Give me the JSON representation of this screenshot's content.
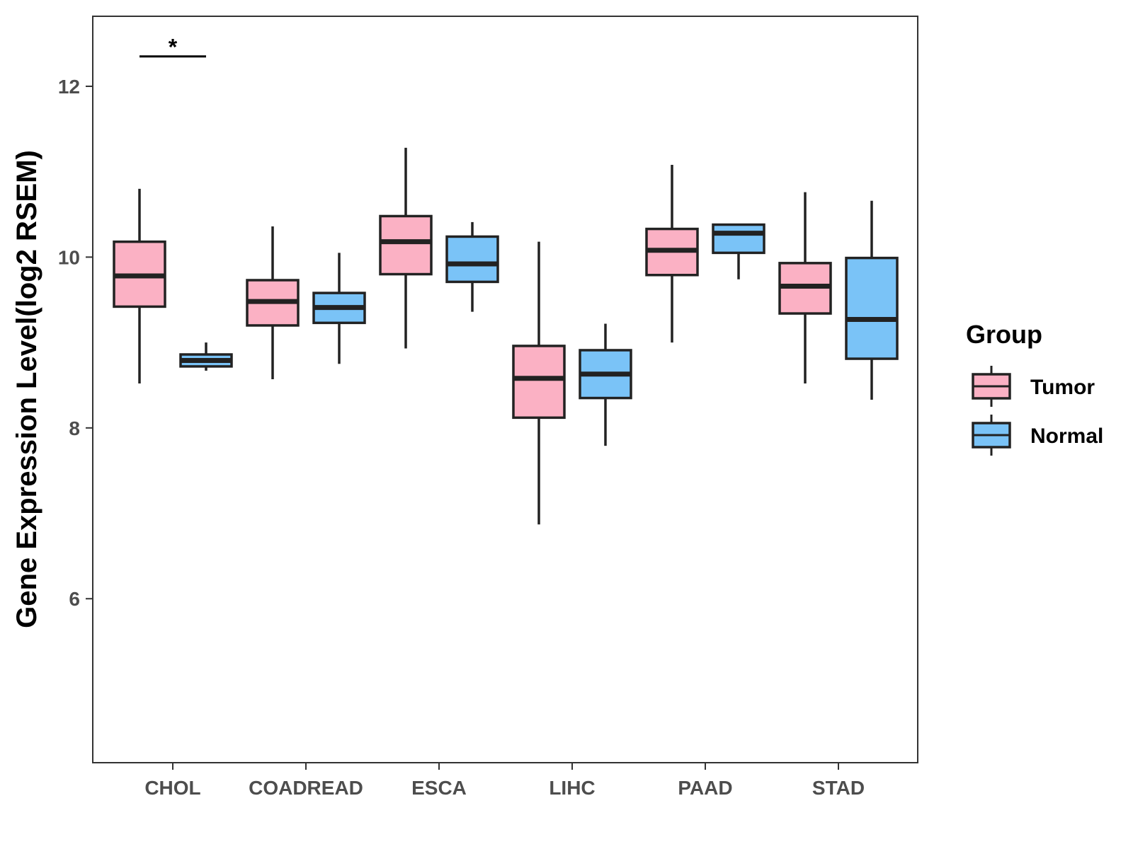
{
  "chart_data": {
    "type": "boxplot",
    "ylabel": "Gene Expression Level(log2 RSEM)",
    "xlabel": "",
    "ylim": [
      4.08,
      12.82
    ],
    "yticks": [
      6,
      8,
      10,
      12
    ],
    "grid": false,
    "categories": [
      "CHOL",
      "COADREAD",
      "ESCA",
      "LIHC",
      "PAAD",
      "STAD"
    ],
    "legend": {
      "title": "Group",
      "position": "right",
      "entries": [
        {
          "name": "Tumor",
          "color": "#FBB1C4"
        },
        {
          "name": "Normal",
          "color": "#7AC3F7"
        }
      ]
    },
    "series": [
      {
        "name": "Tumor",
        "color": "#FBB1C4",
        "boxes": [
          {
            "category": "CHOL",
            "min": 8.52,
            "q1": 9.42,
            "median": 9.78,
            "q3": 10.18,
            "max": 10.8
          },
          {
            "category": "COADREAD",
            "min": 8.57,
            "q1": 9.2,
            "median": 9.48,
            "q3": 9.73,
            "max": 10.36
          },
          {
            "category": "ESCA",
            "min": 8.93,
            "q1": 9.8,
            "median": 10.18,
            "q3": 10.48,
            "max": 11.28
          },
          {
            "category": "LIHC",
            "min": 6.87,
            "q1": 8.12,
            "median": 8.58,
            "q3": 8.96,
            "max": 10.18
          },
          {
            "category": "PAAD",
            "min": 9.0,
            "q1": 9.79,
            "median": 10.08,
            "q3": 10.33,
            "max": 11.08
          },
          {
            "category": "STAD",
            "min": 8.52,
            "q1": 9.34,
            "median": 9.66,
            "q3": 9.93,
            "max": 10.76
          }
        ]
      },
      {
        "name": "Normal",
        "color": "#7AC3F7",
        "boxes": [
          {
            "category": "CHOL",
            "min": 8.67,
            "q1": 8.72,
            "median": 8.79,
            "q3": 8.86,
            "max": 9.0
          },
          {
            "category": "COADREAD",
            "min": 8.75,
            "q1": 9.23,
            "median": 9.41,
            "q3": 9.58,
            "max": 10.05
          },
          {
            "category": "ESCA",
            "min": 9.36,
            "q1": 9.71,
            "median": 9.92,
            "q3": 10.24,
            "max": 10.41
          },
          {
            "category": "LIHC",
            "min": 7.79,
            "q1": 8.35,
            "median": 8.63,
            "q3": 8.91,
            "max": 9.22
          },
          {
            "category": "PAAD",
            "min": 9.74,
            "q1": 10.05,
            "median": 10.28,
            "q3": 10.38,
            "max": 10.38
          },
          {
            "category": "STAD",
            "min": 8.33,
            "q1": 8.81,
            "median": 9.27,
            "q3": 9.99,
            "max": 10.66
          }
        ]
      }
    ],
    "annotations": [
      {
        "category": "CHOL",
        "text": "*",
        "y": 12.35
      }
    ]
  }
}
